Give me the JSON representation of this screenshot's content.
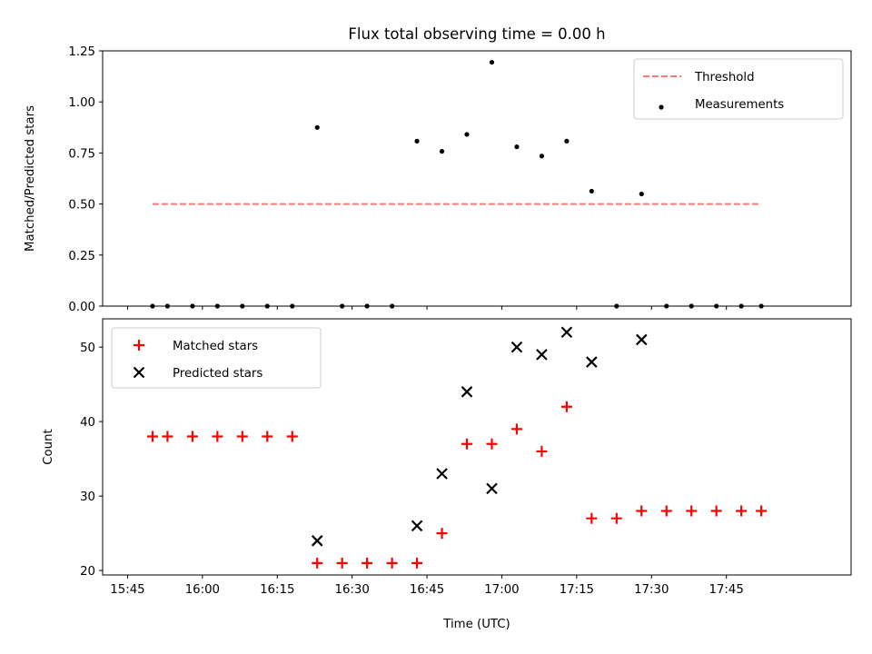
{
  "figure": {
    "title": "Flux total observing time = 0.00 h",
    "xlabel": "Time (UTC)"
  },
  "x_ticks": [
    "15:45",
    "16:00",
    "16:15",
    "16:30",
    "16:45",
    "17:00",
    "17:15",
    "17:30",
    "17:45"
  ],
  "chart_data": [
    {
      "type": "scatter",
      "ylabel": "Matched/Predicted stars",
      "xlim": [
        "15:40",
        "18:10"
      ],
      "ylim": [
        0,
        1.25
      ],
      "y_ticks": [
        "0.00",
        "0.25",
        "0.50",
        "0.75",
        "1.00",
        "1.25"
      ],
      "legend": {
        "placement": "top-right",
        "entries": [
          "Threshold",
          "Measurements"
        ]
      },
      "series": [
        {
          "name": "Threshold",
          "style": "dashed-line",
          "color": "#ff7777",
          "x": [
            "15:50",
            "17:52"
          ],
          "y": [
            0.5,
            0.5
          ]
        },
        {
          "name": "Measurements",
          "style": "dot",
          "color": "#000000",
          "x": [
            "15:50",
            "15:53",
            "15:58",
            "16:03",
            "16:08",
            "16:13",
            "16:18",
            "16:23",
            "16:28",
            "16:33",
            "16:38",
            "16:43",
            "16:48",
            "16:53",
            "16:58",
            "17:03",
            "17:08",
            "17:13",
            "17:18",
            "17:23",
            "17:28",
            "17:33",
            "17:38",
            "17:43",
            "17:48",
            "17:52"
          ],
          "y": [
            0,
            0,
            0,
            0,
            0,
            0,
            0,
            0.875,
            0,
            0,
            0,
            0.808,
            0.758,
            0.841,
            1.194,
            0.78,
            0.735,
            0.808,
            0.563,
            0,
            0.549,
            0,
            0,
            0,
            0,
            0
          ]
        }
      ]
    },
    {
      "type": "scatter",
      "ylabel": "Count",
      "xlim": [
        "15:40",
        "18:10"
      ],
      "ylim": [
        19.4,
        53.8
      ],
      "y_ticks": [
        "20",
        "30",
        "40",
        "50"
      ],
      "legend": {
        "placement": "top-left",
        "entries": [
          "Matched stars",
          "Predicted stars"
        ]
      },
      "series": [
        {
          "name": "Matched stars",
          "marker": "plus",
          "color": "#ff0000",
          "x": [
            "15:50",
            "15:53",
            "15:58",
            "16:03",
            "16:08",
            "16:13",
            "16:18",
            "16:23",
            "16:28",
            "16:33",
            "16:38",
            "16:43",
            "16:48",
            "16:53",
            "16:58",
            "17:03",
            "17:08",
            "17:13",
            "17:18",
            "17:23",
            "17:28",
            "17:33",
            "17:38",
            "17:43",
            "17:48",
            "17:52"
          ],
          "y": [
            38,
            38,
            38,
            38,
            38,
            38,
            38,
            21,
            21,
            21,
            21,
            21,
            25,
            37,
            37,
            39,
            36,
            42,
            27,
            27,
            28,
            28,
            28,
            28,
            28,
            28
          ]
        },
        {
          "name": "Predicted stars",
          "marker": "x",
          "color": "#000000",
          "x": [
            "16:23",
            "16:43",
            "16:48",
            "16:53",
            "16:58",
            "17:03",
            "17:08",
            "17:13",
            "17:18",
            "17:28"
          ],
          "y": [
            24,
            26,
            33,
            44,
            31,
            50,
            49,
            52,
            48,
            51
          ]
        }
      ]
    }
  ]
}
